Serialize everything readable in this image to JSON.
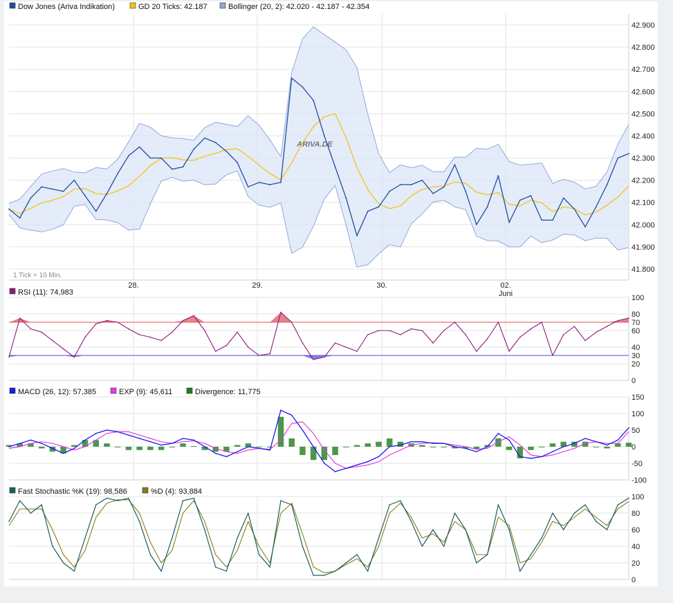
{
  "colors": {
    "price": "#1f4e9e",
    "ma": "#f0c419",
    "band_fill": "#dbe6f7",
    "band_line": "#8fa9d8",
    "rsi": "#8b1a7a",
    "rsi_upper_line": "#e05050",
    "rsi_lower_line": "#4b4bdb",
    "rsi_over_fill": "#e06070",
    "rsi_under_fill": "#6a5ae0",
    "macd": "#1a1aeb",
    "signal": "#e23de2",
    "divergence": "#1e7d1e",
    "stoch_k": "#1a5e5e",
    "stoch_d": "#8a7a18",
    "grid": "#e3e3e3",
    "watermark": "#c9d1dc"
  },
  "chart_data": [
    {
      "id": "price",
      "type": "line",
      "legend": [
        {
          "label": "Dow Jones (Ariva Indikation)",
          "color": "#1f4e9e"
        },
        {
          "label": "GD 20 Ticks: 42.187",
          "color": "#f0c419"
        },
        {
          "label": "Bollinger (20, 2): 42.020 - 42.187 - 42.354",
          "color": "#8fa9d8"
        }
      ],
      "x_ticks": [
        "28.",
        "29.",
        "30.",
        "02."
      ],
      "x_subtick": "Juni",
      "ylim": [
        41750,
        42950
      ],
      "y_ticks": [
        "41.800",
        "41.900",
        "42.000",
        "42.100",
        "42.200",
        "42.300",
        "42.400",
        "42.500",
        "42.600",
        "42.700",
        "42.800",
        "42.900"
      ],
      "note": "1 Tick = 10 Min.",
      "watermark": "ARIVA.DE",
      "series": [
        {
          "name": "Dow Jones (Ariva Indikation)",
          "values": [
            42070,
            42030,
            42120,
            42170,
            42160,
            42150,
            42200,
            42130,
            42060,
            42140,
            42230,
            42310,
            42350,
            42300,
            42300,
            42250,
            42260,
            42340,
            42390,
            42370,
            42330,
            42280,
            42170,
            42190,
            42180,
            42190,
            42660,
            42620,
            42560,
            42400,
            42260,
            42120,
            41950,
            42060,
            42080,
            42150,
            42180,
            42180,
            42200,
            42140,
            42170,
            42270,
            42150,
            42000,
            42080,
            42220,
            42010,
            42110,
            42130,
            42020,
            42020,
            42120,
            42070,
            41990,
            42080,
            42180,
            42300,
            42320
          ]
        }
      ]
    },
    {
      "id": "rsi",
      "type": "line",
      "legend": [
        {
          "label": "RSI (11): 74,983",
          "color": "#8b1a7a"
        }
      ],
      "ylim": [
        0,
        100
      ],
      "y_ticks": [
        "0",
        "20",
        "40",
        "60",
        "80",
        "100"
      ],
      "marked_levels": [
        {
          "label": "70",
          "value": 70,
          "color": "#e05050"
        },
        {
          "label": "30",
          "value": 30,
          "color": "#4b4bdb"
        }
      ],
      "series": [
        {
          "name": "RSI (11): 74,983",
          "values": [
            28,
            75,
            62,
            58,
            48,
            38,
            28,
            52,
            68,
            72,
            70,
            62,
            55,
            52,
            48,
            58,
            72,
            78,
            60,
            35,
            42,
            58,
            40,
            30,
            32,
            82,
            70,
            45,
            25,
            28,
            45,
            40,
            35,
            55,
            60,
            60,
            55,
            62,
            60,
            45,
            60,
            70,
            55,
            35,
            50,
            70,
            35,
            52,
            62,
            70,
            30,
            55,
            65,
            48,
            58,
            65,
            72,
            75
          ]
        }
      ]
    },
    {
      "id": "macd",
      "type": "line",
      "legend": [
        {
          "label": "MACD (26, 12): 57,385",
          "color": "#1a1aeb"
        },
        {
          "label": "EXP (9): 45,611",
          "color": "#e23de2"
        },
        {
          "label": "Divergence: 11,775",
          "color": "#1e7d1e"
        }
      ],
      "ylim": [
        -100,
        150
      ],
      "y_ticks": [
        "-100",
        "-50",
        "0",
        "50",
        "100",
        "150"
      ],
      "series": [
        {
          "name": "MACD (26, 12): 57,385",
          "values": [
            0,
            10,
            20,
            10,
            -5,
            -20,
            -5,
            20,
            40,
            50,
            45,
            35,
            25,
            15,
            5,
            10,
            25,
            20,
            0,
            -20,
            -30,
            -15,
            0,
            -5,
            -10,
            110,
            95,
            50,
            0,
            -50,
            -75,
            -65,
            -55,
            -45,
            -30,
            0,
            5,
            15,
            15,
            10,
            10,
            0,
            -5,
            -15,
            0,
            40,
            20,
            -30,
            -35,
            -30,
            -15,
            0,
            10,
            25,
            15,
            5,
            20,
            57
          ]
        },
        {
          "name": "EXP (9): 45,611",
          "values": [
            -5,
            0,
            10,
            15,
            10,
            0,
            -10,
            0,
            20,
            40,
            45,
            45,
            35,
            25,
            15,
            10,
            15,
            18,
            10,
            -5,
            -15,
            -20,
            -10,
            -5,
            -8,
            20,
            70,
            75,
            40,
            -10,
            -50,
            -65,
            -60,
            -55,
            -45,
            -25,
            -10,
            5,
            10,
            12,
            10,
            5,
            0,
            -8,
            -5,
            15,
            30,
            5,
            -25,
            -30,
            -25,
            -15,
            -5,
            10,
            15,
            10,
            10,
            45
          ]
        },
        {
          "name": "Divergence: 11,775",
          "type": "bar",
          "values": [
            5,
            10,
            10,
            -5,
            -15,
            -20,
            5,
            20,
            20,
            10,
            0,
            -10,
            -10,
            -10,
            -10,
            0,
            10,
            2,
            -10,
            -15,
            -15,
            5,
            10,
            0,
            -2,
            90,
            25,
            -25,
            -40,
            -40,
            -25,
            0,
            5,
            10,
            15,
            25,
            15,
            10,
            5,
            -2,
            0,
            -5,
            -5,
            -7,
            5,
            25,
            -10,
            -35,
            -10,
            0,
            10,
            15,
            15,
            15,
            0,
            -5,
            10,
            12
          ]
        }
      ]
    },
    {
      "id": "stochastic",
      "type": "line",
      "legend": [
        {
          "label": "Fast Stochastic %K (19): 98,586",
          "color": "#1a5e5e"
        },
        {
          "label": "%D (4): 93,884",
          "color": "#8a7a18"
        }
      ],
      "ylim": [
        0,
        100
      ],
      "y_ticks": [
        "0",
        "20",
        "40",
        "60",
        "80",
        "100"
      ],
      "series": [
        {
          "name": "Fast Stochastic %K (19): 98,586",
          "values": [
            70,
            95,
            80,
            90,
            40,
            20,
            10,
            50,
            90,
            98,
            95,
            98,
            70,
            30,
            10,
            50,
            95,
            98,
            60,
            15,
            10,
            50,
            80,
            30,
            15,
            95,
            90,
            40,
            5,
            5,
            10,
            20,
            30,
            10,
            50,
            90,
            95,
            70,
            40,
            60,
            40,
            80,
            60,
            20,
            30,
            90,
            60,
            10,
            30,
            50,
            80,
            60,
            80,
            90,
            70,
            60,
            90,
            98
          ]
        },
        {
          "name": "%D (4): 93,884",
          "values": [
            65,
            85,
            85,
            85,
            60,
            30,
            15,
            35,
            75,
            92,
            96,
            96,
            80,
            45,
            20,
            35,
            80,
            95,
            70,
            30,
            15,
            35,
            70,
            40,
            20,
            80,
            92,
            55,
            15,
            8,
            10,
            18,
            25,
            15,
            40,
            80,
            92,
            75,
            50,
            55,
            45,
            70,
            60,
            30,
            30,
            75,
            65,
            20,
            25,
            45,
            70,
            65,
            75,
            85,
            75,
            65,
            85,
            94
          ]
        }
      ]
    }
  ]
}
